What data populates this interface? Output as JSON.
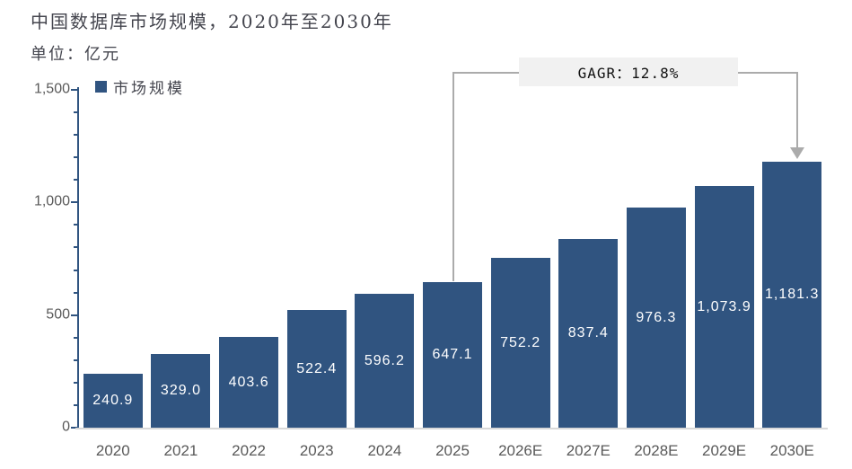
{
  "header": {
    "title": "中国数据库市场规模，2020年至2030年",
    "unit": "单位：亿元"
  },
  "legend": {
    "label": "市场规模"
  },
  "annotation": {
    "label": "GAGR：12.8%"
  },
  "colors": {
    "bar": "#305480",
    "axis": "#305480",
    "tick_label": "#595959",
    "title_text": "#44454E",
    "value_label": "#FFFFFF",
    "annotation_bg": "#F1F1F1",
    "connector": "#ABABAB",
    "baseline": "#D9D9D9"
  },
  "chart_data": {
    "type": "bar",
    "title": "中国数据库市场规模，2020年至2030年",
    "subtitle": "单位：亿元",
    "unit": "亿元",
    "series_name": "市场规模",
    "categories": [
      "2020",
      "2021",
      "2022",
      "2023",
      "2024",
      "2025",
      "2026E",
      "2027E",
      "2028E",
      "2029E",
      "2030E"
    ],
    "values": [
      240.9,
      329.0,
      403.6,
      522.4,
      596.2,
      647.1,
      752.2,
      837.4,
      976.3,
      1073.9,
      1181.3
    ],
    "value_labels": [
      "240.9",
      "329.0",
      "403.6",
      "522.4",
      "596.2",
      "647.1",
      "752.2",
      "837.4",
      "976.3",
      "1,073.9",
      "1,181.3"
    ],
    "xlabel": "",
    "ylabel": "",
    "ylim": [
      0,
      1500
    ],
    "yticks": [
      0,
      500,
      1000,
      1500
    ],
    "ytick_labels": [
      "0",
      "500",
      "1,000",
      "1,500"
    ],
    "ytick_interval_major": 500,
    "ytick_interval_minor": 100,
    "grid": false,
    "legend_position": "top-left",
    "annotations": [
      {
        "label": "GAGR：12.8%",
        "from_category": "2025",
        "to_category": "2030E"
      }
    ]
  }
}
